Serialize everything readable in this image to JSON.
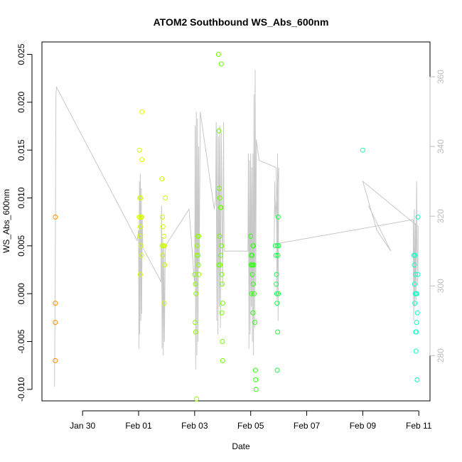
{
  "chart_data": {
    "type": "scatter",
    "title": "ATOM2 Southbound WS_Abs_600nm",
    "xlabel": "Date",
    "ylabel": "WS_Abs_600nm",
    "x_unit": "day_of_2017",
    "xlim": [
      28.55,
      42.4
    ],
    "ylim": [
      -0.0112,
      0.0263
    ],
    "y2lim": [
      267,
      370
    ],
    "x_ticks": [
      {
        "value": 30,
        "label": "Jan 30"
      },
      {
        "value": 32,
        "label": "Feb 01"
      },
      {
        "value": 34,
        "label": "Feb 03"
      },
      {
        "value": 36,
        "label": "Feb 05"
      },
      {
        "value": 38,
        "label": "Feb 07"
      },
      {
        "value": 40,
        "label": "Feb 09"
      },
      {
        "value": 42,
        "label": "Feb 11"
      }
    ],
    "y_ticks": [
      {
        "value": -0.01,
        "label": "-0.010"
      },
      {
        "value": -0.005,
        "label": "-0.005"
      },
      {
        "value": 0,
        "label": "0.000"
      },
      {
        "value": 0.005,
        "label": "0.005"
      },
      {
        "value": 0.01,
        "label": "0.010"
      },
      {
        "value": 0.015,
        "label": "0.015"
      },
      {
        "value": 0.02,
        "label": "0.020"
      },
      {
        "value": 0.025,
        "label": "0.025"
      }
    ],
    "y2_ticks": [
      {
        "value": 280,
        "label": "280"
      },
      {
        "value": 300,
        "label": "300"
      },
      {
        "value": 320,
        "label": "320"
      },
      {
        "value": 340,
        "label": "340"
      },
      {
        "value": 360,
        "label": "360"
      }
    ],
    "colors": {
      "axis": "#000000",
      "secondary_axis": "#bdbdbd",
      "line": "#c8c8c8"
    },
    "points": [
      {
        "x": 29.03,
        "y": 0.008,
        "color": "#ff8c00"
      },
      {
        "x": 29.03,
        "y": -0.001,
        "color": "#ff8c00"
      },
      {
        "x": 29.03,
        "y": -0.003,
        "color": "#ff8c00"
      },
      {
        "x": 29.03,
        "y": -0.007,
        "color": "#ff8c00"
      },
      {
        "x": 32.03,
        "y": 0.015,
        "color": "#d9ff00"
      },
      {
        "x": 32.12,
        "y": 0.019,
        "color": "#d9ff00"
      },
      {
        "x": 32.12,
        "y": 0.014,
        "color": "#d9ff00"
      },
      {
        "x": 32.04,
        "y": 0.01,
        "color": "#d9ff00"
      },
      {
        "x": 32.07,
        "y": 0.01,
        "color": "#d9ff00"
      },
      {
        "x": 32.02,
        "y": 0.008,
        "color": "#d9ff00"
      },
      {
        "x": 32.05,
        "y": 0.008,
        "color": "#d9ff00"
      },
      {
        "x": 32.09,
        "y": 0.008,
        "color": "#d9ff00"
      },
      {
        "x": 32.11,
        "y": 0.008,
        "color": "#d9ff00"
      },
      {
        "x": 32.06,
        "y": 0.007,
        "color": "#d9ff00"
      },
      {
        "x": 32.05,
        "y": 0.006,
        "color": "#d9ff00"
      },
      {
        "x": 32.08,
        "y": 0.005,
        "color": "#d9ff00"
      },
      {
        "x": 32.1,
        "y": 0.004,
        "color": "#d9ff00"
      },
      {
        "x": 32.06,
        "y": 0.002,
        "color": "#d9ff00"
      },
      {
        "x": 32.83,
        "y": 0.012,
        "color": "#c8ff00"
      },
      {
        "x": 32.95,
        "y": 0.01,
        "color": "#c8ff00"
      },
      {
        "x": 32.85,
        "y": 0.008,
        "color": "#c8ff00"
      },
      {
        "x": 32.87,
        "y": 0.007,
        "color": "#c8ff00"
      },
      {
        "x": 32.9,
        "y": 0.006,
        "color": "#c8ff00"
      },
      {
        "x": 32.84,
        "y": 0.005,
        "color": "#c8ff00"
      },
      {
        "x": 32.88,
        "y": 0.005,
        "color": "#c8ff00"
      },
      {
        "x": 32.92,
        "y": 0.005,
        "color": "#c8ff00"
      },
      {
        "x": 32.86,
        "y": 0.004,
        "color": "#c8ff00"
      },
      {
        "x": 32.93,
        "y": 0.003,
        "color": "#c8ff00"
      },
      {
        "x": 32.91,
        "y": -0.001,
        "color": "#c8ff00"
      },
      {
        "x": 34.0,
        "y": 0.002,
        "color": "#8cff00"
      },
      {
        "x": 34.03,
        "y": 0.001,
        "color": "#8cff00"
      },
      {
        "x": 34.05,
        "y": 0.0,
        "color": "#8cff00"
      },
      {
        "x": 34.08,
        "y": 0.004,
        "color": "#8cff00"
      },
      {
        "x": 34.12,
        "y": 0.004,
        "color": "#8cff00"
      },
      {
        "x": 34.1,
        "y": 0.006,
        "color": "#8cff00"
      },
      {
        "x": 34.14,
        "y": 0.006,
        "color": "#8cff00"
      },
      {
        "x": 34.09,
        "y": 0.005,
        "color": "#8cff00"
      },
      {
        "x": 34.13,
        "y": 0.003,
        "color": "#8cff00"
      },
      {
        "x": 34.15,
        "y": 0.002,
        "color": "#8cff00"
      },
      {
        "x": 34.02,
        "y": -0.003,
        "color": "#8cff00"
      },
      {
        "x": 34.04,
        "y": -0.004,
        "color": "#8cff00"
      },
      {
        "x": 34.07,
        "y": -0.011,
        "color": "#8cff00"
      },
      {
        "x": 34.85,
        "y": 0.025,
        "color": "#6eff00"
      },
      {
        "x": 34.95,
        "y": 0.024,
        "color": "#6eff00"
      },
      {
        "x": 34.87,
        "y": 0.017,
        "color": "#6eff00"
      },
      {
        "x": 34.88,
        "y": 0.011,
        "color": "#6eff00"
      },
      {
        "x": 34.9,
        "y": 0.01,
        "color": "#6eff00"
      },
      {
        "x": 34.92,
        "y": 0.009,
        "color": "#6eff00"
      },
      {
        "x": 34.94,
        "y": 0.009,
        "color": "#6eff00"
      },
      {
        "x": 34.89,
        "y": 0.006,
        "color": "#6eff00"
      },
      {
        "x": 34.96,
        "y": 0.005,
        "color": "#6eff00"
      },
      {
        "x": 34.93,
        "y": 0.004,
        "color": "#6eff00"
      },
      {
        "x": 34.86,
        "y": 0.003,
        "color": "#6eff00"
      },
      {
        "x": 34.91,
        "y": 0.003,
        "color": "#6eff00"
      },
      {
        "x": 34.97,
        "y": 0.002,
        "color": "#6eff00"
      },
      {
        "x": 34.98,
        "y": 0.001,
        "color": "#6eff00"
      },
      {
        "x": 35.0,
        "y": -0.001,
        "color": "#6eff00"
      },
      {
        "x": 34.97,
        "y": -0.002,
        "color": "#6eff00"
      },
      {
        "x": 34.99,
        "y": -0.005,
        "color": "#6eff00"
      },
      {
        "x": 35.0,
        "y": -0.007,
        "color": "#6eff00"
      },
      {
        "x": 36.0,
        "y": 0.006,
        "color": "#32ff14"
      },
      {
        "x": 36.02,
        "y": 0.004,
        "color": "#32ff14"
      },
      {
        "x": 36.05,
        "y": 0.004,
        "color": "#32ff14"
      },
      {
        "x": 36.08,
        "y": 0.005,
        "color": "#32ff14"
      },
      {
        "x": 36.1,
        "y": 0.005,
        "color": "#32ff14"
      },
      {
        "x": 36.01,
        "y": 0.003,
        "color": "#32ff14"
      },
      {
        "x": 36.04,
        "y": 0.003,
        "color": "#32ff14"
      },
      {
        "x": 36.07,
        "y": 0.003,
        "color": "#32ff14"
      },
      {
        "x": 36.11,
        "y": 0.003,
        "color": "#32ff14"
      },
      {
        "x": 36.06,
        "y": 0.002,
        "color": "#32ff14"
      },
      {
        "x": 36.09,
        "y": 0.001,
        "color": "#32ff14"
      },
      {
        "x": 36.03,
        "y": 0.0,
        "color": "#32ff14"
      },
      {
        "x": 36.12,
        "y": 0.0,
        "color": "#32ff14"
      },
      {
        "x": 36.08,
        "y": -0.002,
        "color": "#32ff14"
      },
      {
        "x": 36.15,
        "y": -0.003,
        "color": "#32ff14"
      },
      {
        "x": 36.17,
        "y": -0.008,
        "color": "#32ff14"
      },
      {
        "x": 36.18,
        "y": -0.009,
        "color": "#32ff14"
      },
      {
        "x": 36.19,
        "y": -0.01,
        "color": "#32ff14"
      },
      {
        "x": 36.88,
        "y": 0.005,
        "color": "#14ff46"
      },
      {
        "x": 36.95,
        "y": 0.005,
        "color": "#14ff46"
      },
      {
        "x": 37.0,
        "y": 0.005,
        "color": "#14ff46"
      },
      {
        "x": 36.98,
        "y": 0.008,
        "color": "#14ff46"
      },
      {
        "x": 36.9,
        "y": 0.004,
        "color": "#14ff46"
      },
      {
        "x": 36.97,
        "y": 0.004,
        "color": "#14ff46"
      },
      {
        "x": 36.92,
        "y": 0.002,
        "color": "#14ff46"
      },
      {
        "x": 36.91,
        "y": 0.001,
        "color": "#14ff46"
      },
      {
        "x": 36.93,
        "y": 0.0,
        "color": "#14ff46"
      },
      {
        "x": 36.99,
        "y": 0.0,
        "color": "#14ff46"
      },
      {
        "x": 36.94,
        "y": -0.001,
        "color": "#14ff46"
      },
      {
        "x": 36.96,
        "y": -0.004,
        "color": "#14ff46"
      },
      {
        "x": 36.95,
        "y": -0.008,
        "color": "#14ff46"
      },
      {
        "x": 40.0,
        "y": 0.015,
        "color": "#14ffaa"
      },
      {
        "x": 41.82,
        "y": 0.004,
        "color": "#14ffc8"
      },
      {
        "x": 41.86,
        "y": 0.004,
        "color": "#14ffc8"
      },
      {
        "x": 41.84,
        "y": 0.003,
        "color": "#14ffc8"
      },
      {
        "x": 41.88,
        "y": 0.002,
        "color": "#14ffc8"
      },
      {
        "x": 41.97,
        "y": 0.002,
        "color": "#14ffc8"
      },
      {
        "x": 41.85,
        "y": 0.001,
        "color": "#14ffc8"
      },
      {
        "x": 41.87,
        "y": 0.0,
        "color": "#14ffc8"
      },
      {
        "x": 41.9,
        "y": 0.0,
        "color": "#14ffc8"
      },
      {
        "x": 41.93,
        "y": 0.0,
        "color": "#14ffc8"
      },
      {
        "x": 41.86,
        "y": -0.001,
        "color": "#14ffc8"
      },
      {
        "x": 41.95,
        "y": -0.002,
        "color": "#14ffc8"
      },
      {
        "x": 41.92,
        "y": -0.003,
        "color": "#14ffc8"
      },
      {
        "x": 41.89,
        "y": -0.004,
        "color": "#14ffc8"
      },
      {
        "x": 41.91,
        "y": -0.004,
        "color": "#14ffc8"
      },
      {
        "x": 41.9,
        "y": -0.006,
        "color": "#14ffc8"
      },
      {
        "x": 41.94,
        "y": -0.009,
        "color": "#14ffc8"
      },
      {
        "x": 41.97,
        "y": 0.008,
        "color": "#14ffc8"
      }
    ],
    "secondary_line": [
      [
        29.0,
        271
      ],
      [
        29.03,
        310
      ],
      [
        29.05,
        355
      ],
      [
        29.07,
        357
      ],
      [
        31.95,
        313
      ],
      [
        32.0,
        316
      ],
      [
        32.01,
        282
      ],
      [
        32.03,
        330
      ],
      [
        32.04,
        286
      ],
      [
        32.06,
        332
      ],
      [
        32.08,
        290
      ],
      [
        32.1,
        328
      ],
      [
        32.11,
        292
      ],
      [
        32.13,
        320
      ],
      [
        32.15,
        311
      ],
      [
        32.75,
        302
      ],
      [
        32.8,
        301
      ],
      [
        32.82,
        323
      ],
      [
        32.84,
        282
      ],
      [
        32.86,
        314
      ],
      [
        32.88,
        280
      ],
      [
        32.9,
        312
      ],
      [
        32.92,
        284
      ],
      [
        32.95,
        310
      ],
      [
        33.0,
        312
      ],
      [
        33.8,
        322
      ],
      [
        34.0,
        300
      ],
      [
        34.02,
        346
      ],
      [
        34.04,
        276
      ],
      [
        34.06,
        350
      ],
      [
        34.08,
        280
      ],
      [
        34.1,
        348
      ],
      [
        34.12,
        284
      ],
      [
        34.14,
        340
      ],
      [
        34.16,
        305
      ],
      [
        34.2,
        350
      ],
      [
        34.7,
        322
      ],
      [
        34.75,
        325
      ],
      [
        34.77,
        347
      ],
      [
        34.79,
        290
      ],
      [
        34.81,
        345
      ],
      [
        34.83,
        286
      ],
      [
        34.86,
        343
      ],
      [
        34.88,
        294
      ],
      [
        34.9,
        346
      ],
      [
        34.92,
        288
      ],
      [
        34.95,
        344
      ],
      [
        35.0,
        300
      ],
      [
        35.03,
        347
      ],
      [
        35.05,
        310
      ],
      [
        35.9,
        310
      ],
      [
        35.92,
        338
      ],
      [
        35.94,
        282
      ],
      [
        35.96,
        336
      ],
      [
        35.98,
        286
      ],
      [
        36.0,
        338
      ],
      [
        36.02,
        294
      ],
      [
        36.04,
        334
      ],
      [
        36.06,
        284
      ],
      [
        36.08,
        338
      ],
      [
        36.1,
        280
      ],
      [
        36.12,
        355
      ],
      [
        36.14,
        288
      ],
      [
        36.16,
        362
      ],
      [
        36.18,
        300
      ],
      [
        36.2,
        342
      ],
      [
        36.3,
        336
      ],
      [
        36.9,
        334
      ],
      [
        36.92,
        330
      ],
      [
        36.94,
        296
      ],
      [
        36.96,
        338
      ],
      [
        36.98,
        290
      ],
      [
        37.0,
        334
      ],
      [
        36.88,
        320
      ],
      [
        36.86,
        330
      ],
      [
        36.84,
        312
      ],
      [
        41.8,
        319
      ],
      [
        41.82,
        290
      ],
      [
        41.84,
        322
      ],
      [
        41.86,
        294
      ],
      [
        41.88,
        318
      ],
      [
        41.9,
        296
      ],
      [
        41.92,
        330
      ],
      [
        41.94,
        310
      ],
      [
        41.96,
        300
      ],
      [
        41.98,
        317
      ],
      [
        40.0,
        330
      ],
      [
        40.5,
        316
      ],
      [
        41.0,
        310
      ],
      [
        40.2,
        323
      ]
    ]
  }
}
